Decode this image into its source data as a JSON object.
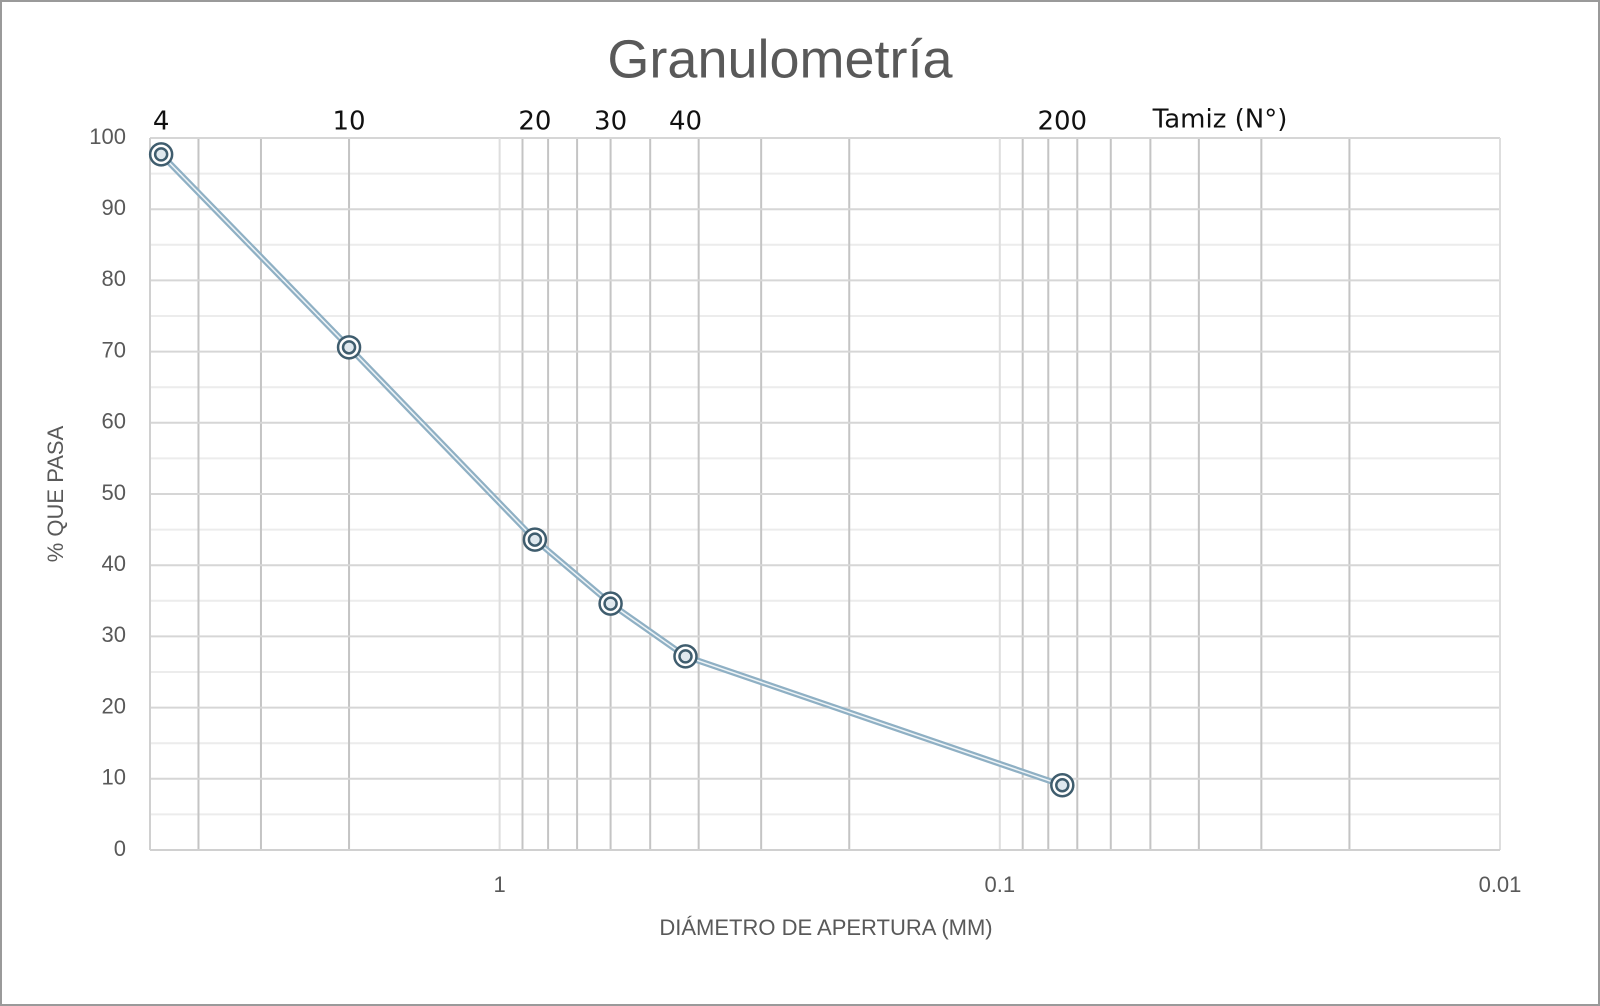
{
  "chart_data": {
    "type": "line",
    "title": "Granulometría",
    "x_label": "DIÁMETRO DE APERTURA (MM)",
    "y_label": "% QUE PASA",
    "x": [
      4.75,
      2.0,
      0.85,
      0.6,
      0.425,
      0.075
    ],
    "values": [
      97.7,
      70.6,
      43.6,
      34.6,
      27.2,
      9.1
    ],
    "sieve_labels": [
      "4",
      "10",
      "20",
      "30",
      "40",
      "200"
    ],
    "sieve_axis_label": "Tamiz (N°)",
    "color": "#8fb0c4",
    "marker_color": "#3f5d6e",
    "x_log": true,
    "xlim": [
      5,
      0.01
    ],
    "xticks": [
      1,
      0.1,
      0.01
    ],
    "ylim": [
      0,
      100
    ],
    "yticks": [
      0,
      10,
      20,
      30,
      40,
      50,
      60,
      70,
      80,
      90,
      100
    ],
    "grid": true,
    "minor_grid": true
  }
}
